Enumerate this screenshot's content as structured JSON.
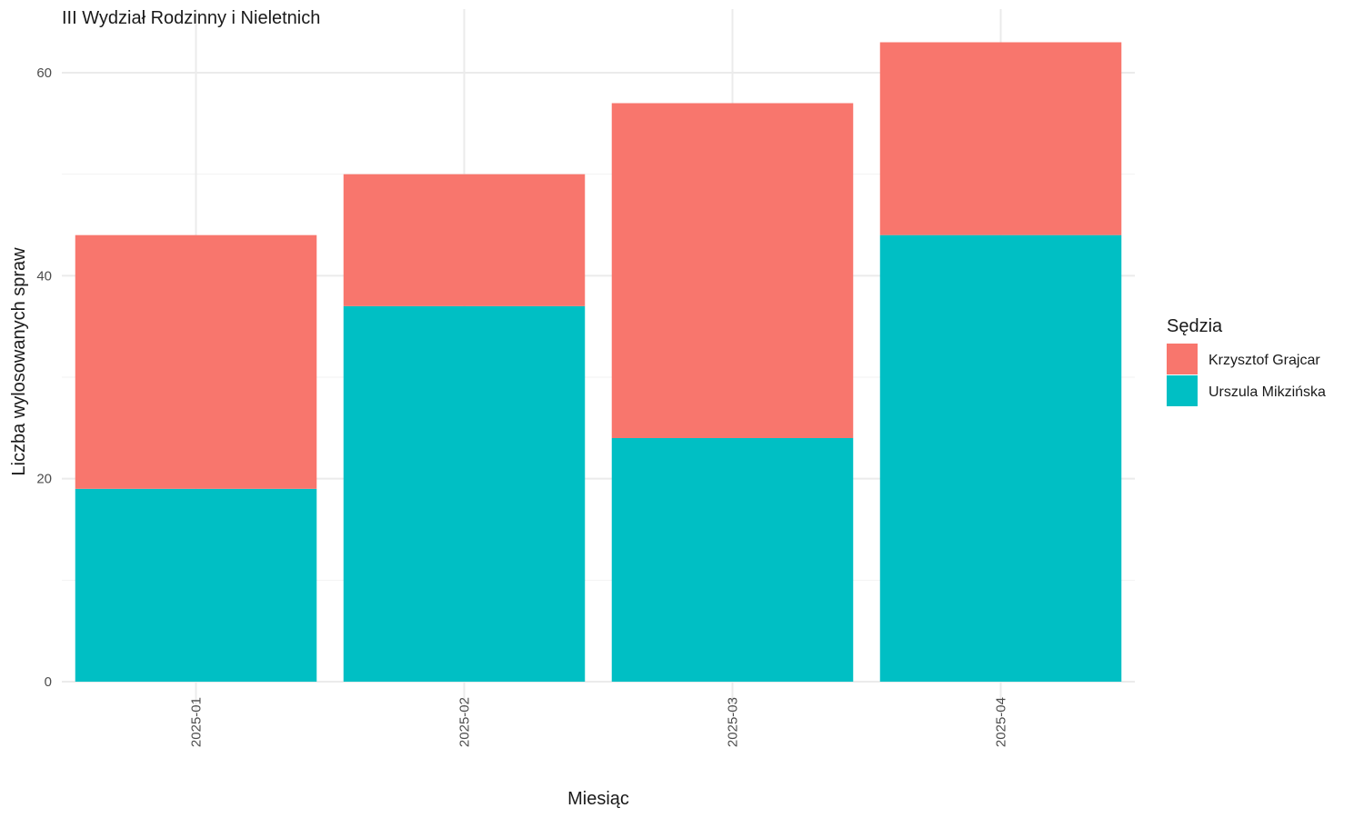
{
  "chart_data": {
    "type": "bar",
    "stacked": true,
    "title": "III Wydział Rodzinny i Nieletnich",
    "xlabel": "Miesiąc",
    "ylabel": "Liczba wylosowanych spraw",
    "categories": [
      "2025-01",
      "2025-02",
      "2025-03",
      "2025-04"
    ],
    "series": [
      {
        "name": "Urszula Mikzińska",
        "color": "#00BFC4",
        "values": [
          19,
          37,
          24,
          44
        ]
      },
      {
        "name": "Krzysztof Grajcar",
        "color": "#F8766D",
        "values": [
          25,
          13,
          33,
          19
        ]
      }
    ],
    "ylim": [
      0,
      63
    ],
    "yticks": [
      0,
      20,
      40,
      60
    ],
    "grid": true,
    "legend": {
      "title": "Sędzia",
      "position": "right",
      "entries": [
        {
          "name": "Krzysztof Grajcar",
          "color": "#F8766D"
        },
        {
          "name": "Urszula Mikzińska",
          "color": "#00BFC4"
        }
      ]
    }
  }
}
